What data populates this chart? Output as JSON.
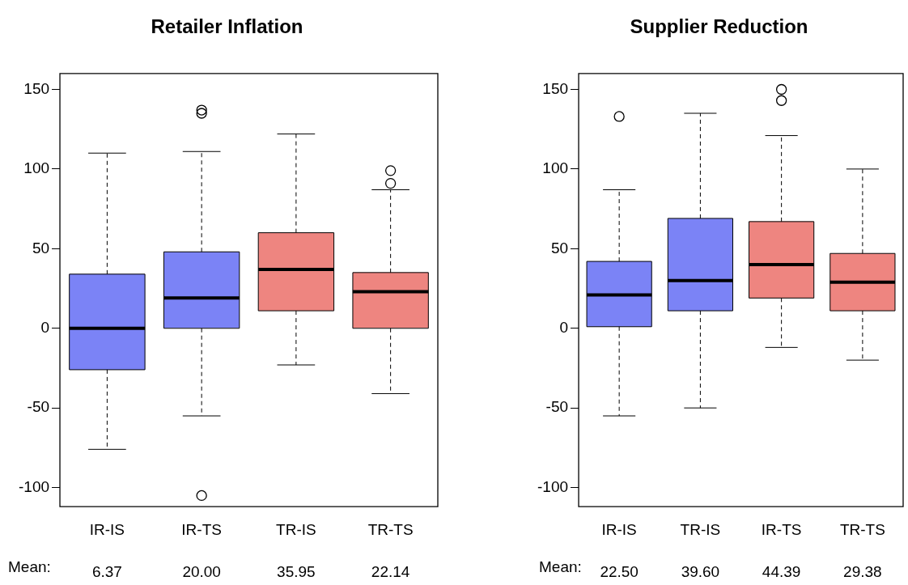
{
  "chart_data": [
    {
      "type": "box",
      "title": "Retailer Inflation",
      "categories": [
        "IR-IS",
        "IR-TS",
        "TR-IS",
        "TR-TS"
      ],
      "colors": [
        "#7b83f6",
        "#7b83f6",
        "#ee8580",
        "#ee8580"
      ],
      "boxes": [
        {
          "low": -76,
          "q1": -26,
          "median": 0,
          "q3": 34,
          "high": 110
        },
        {
          "low": -55,
          "q1": 0,
          "median": 19,
          "q3": 48,
          "high": 111,
          "outliers": [
            137,
            135,
            -105
          ]
        },
        {
          "low": -23,
          "q1": 11,
          "median": 37,
          "q3": 60,
          "high": 122
        },
        {
          "low": -41,
          "q1": 0,
          "median": 23,
          "q3": 35,
          "high": 87,
          "outliers": [
            99,
            91
          ]
        }
      ],
      "value_labels": [
        "6.37",
        "20.00",
        "35.95",
        "22.14"
      ],
      "annotations": [
        "Mean:"
      ],
      "ylim": [
        -112,
        160
      ],
      "yticks": [
        -100,
        -50,
        0,
        50,
        100,
        150
      ],
      "grid": false,
      "legend": false
    },
    {
      "type": "box",
      "title": "Supplier Reduction",
      "categories": [
        "IR-IS",
        "TR-IS",
        "IR-TS",
        "TR-TS"
      ],
      "colors": [
        "#7b83f6",
        "#7b83f6",
        "#ee8580",
        "#ee8580"
      ],
      "boxes": [
        {
          "low": -55,
          "q1": 1,
          "median": 21,
          "q3": 42,
          "high": 87,
          "outliers": [
            133
          ]
        },
        {
          "low": -50,
          "q1": 11,
          "median": 30,
          "q3": 69,
          "high": 135
        },
        {
          "low": -12,
          "q1": 19,
          "median": 40,
          "q3": 67,
          "high": 121,
          "outliers": [
            150,
            143
          ]
        },
        {
          "low": -20,
          "q1": 11,
          "median": 29,
          "q3": 47,
          "high": 100
        }
      ],
      "value_labels": [
        "22.50",
        "39.60",
        "44.39",
        "29.38"
      ],
      "annotations": [
        "Mean:"
      ],
      "ylim": [
        -112,
        160
      ],
      "yticks": [
        -100,
        -50,
        0,
        50,
        100,
        150
      ],
      "grid": false,
      "legend": false
    }
  ]
}
